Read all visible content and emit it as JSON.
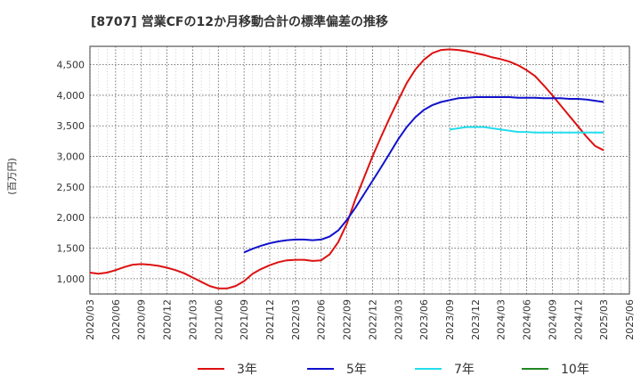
{
  "chart_data": {
    "type": "line",
    "title": "[8707]  営業CFの12か月移動合計の標準偏差の推移",
    "ylabel": "(百万円)",
    "xlabel": "",
    "ylim": [
      750,
      4800
    ],
    "yticks": [
      1000,
      1500,
      2000,
      2500,
      3000,
      3500,
      4000,
      4500
    ],
    "ytick_labels": [
      "1,000",
      "1,500",
      "2,000",
      "2,500",
      "3,000",
      "3,500",
      "4,000",
      "4,500"
    ],
    "x_start": "2020-03",
    "x_end": "2025-06",
    "xtick_labels": [
      "2020/03",
      "2020/06",
      "2020/09",
      "2020/12",
      "2021/03",
      "2021/06",
      "2021/09",
      "2021/12",
      "2022/03",
      "2022/06",
      "2022/09",
      "2022/12",
      "2023/03",
      "2023/06",
      "2023/09",
      "2023/12",
      "2024/03",
      "2024/06",
      "2024/09",
      "2024/12",
      "2025/03",
      "2025/06"
    ],
    "grid": true,
    "legend_position": "bottom",
    "series": [
      {
        "name": "3年",
        "color": "#dd1111",
        "x": [
          "2020-03",
          "2020-04",
          "2020-05",
          "2020-06",
          "2020-07",
          "2020-08",
          "2020-09",
          "2020-10",
          "2020-11",
          "2020-12",
          "2021-01",
          "2021-02",
          "2021-03",
          "2021-04",
          "2021-05",
          "2021-06",
          "2021-07",
          "2021-08",
          "2021-09",
          "2021-10",
          "2021-11",
          "2021-12",
          "2022-01",
          "2022-02",
          "2022-03",
          "2022-04",
          "2022-05",
          "2022-06",
          "2022-07",
          "2022-08",
          "2022-09",
          "2022-10",
          "2022-11",
          "2022-12",
          "2023-01",
          "2023-02",
          "2023-03",
          "2023-04",
          "2023-05",
          "2023-06",
          "2023-07",
          "2023-08",
          "2023-09",
          "2023-10",
          "2023-11",
          "2023-12",
          "2024-01",
          "2024-02",
          "2024-03",
          "2024-04",
          "2024-05",
          "2024-06",
          "2024-07",
          "2024-08",
          "2024-09",
          "2024-10",
          "2024-11",
          "2024-12",
          "2025-01",
          "2025-02",
          "2025-03"
        ],
        "values": [
          1100,
          1080,
          1100,
          1140,
          1190,
          1230,
          1240,
          1230,
          1210,
          1180,
          1140,
          1090,
          1020,
          950,
          880,
          840,
          840,
          880,
          960,
          1080,
          1160,
          1220,
          1270,
          1300,
          1310,
          1310,
          1290,
          1300,
          1400,
          1600,
          1900,
          2300,
          2650,
          3000,
          3320,
          3630,
          3920,
          4200,
          4420,
          4580,
          4690,
          4740,
          4750,
          4740,
          4720,
          4690,
          4660,
          4620,
          4590,
          4550,
          4490,
          4410,
          4310,
          4160,
          4000,
          3830,
          3660,
          3490,
          3320,
          3170,
          3100
        ]
      },
      {
        "name": "5年",
        "color": "#1111cc",
        "x": [
          "2021-09",
          "2021-10",
          "2021-11",
          "2021-12",
          "2022-01",
          "2022-02",
          "2022-03",
          "2022-04",
          "2022-05",
          "2022-06",
          "2022-07",
          "2022-08",
          "2022-09",
          "2022-10",
          "2022-11",
          "2022-12",
          "2023-01",
          "2023-02",
          "2023-03",
          "2023-04",
          "2023-05",
          "2023-06",
          "2023-07",
          "2023-08",
          "2023-09",
          "2023-10",
          "2023-11",
          "2023-12",
          "2024-01",
          "2024-02",
          "2024-03",
          "2024-04",
          "2024-05",
          "2024-06",
          "2024-07",
          "2024-08",
          "2024-09",
          "2024-10",
          "2024-11",
          "2024-12",
          "2025-01",
          "2025-02",
          "2025-03"
        ],
        "values": [
          1430,
          1490,
          1540,
          1580,
          1610,
          1630,
          1640,
          1640,
          1630,
          1640,
          1690,
          1790,
          1960,
          2160,
          2380,
          2600,
          2820,
          3050,
          3280,
          3480,
          3640,
          3760,
          3840,
          3890,
          3920,
          3950,
          3960,
          3970,
          3970,
          3970,
          3970,
          3970,
          3960,
          3960,
          3960,
          3950,
          3950,
          3950,
          3940,
          3940,
          3930,
          3910,
          3890
        ]
      },
      {
        "name": "7年",
        "color": "#22ddee",
        "x": [
          "2023-09",
          "2023-10",
          "2023-11",
          "2023-12",
          "2024-01",
          "2024-02",
          "2024-03",
          "2024-04",
          "2024-05",
          "2024-06",
          "2024-07",
          "2024-08",
          "2024-09",
          "2024-10",
          "2024-11",
          "2024-12",
          "2025-01",
          "2025-02",
          "2025-03"
        ],
        "values": [
          3440,
          3460,
          3480,
          3480,
          3480,
          3460,
          3440,
          3420,
          3400,
          3400,
          3390,
          3390,
          3390,
          3390,
          3390,
          3390,
          3390,
          3390,
          3390
        ]
      },
      {
        "name": "10年",
        "color": "#228822",
        "x": [],
        "values": []
      }
    ]
  }
}
